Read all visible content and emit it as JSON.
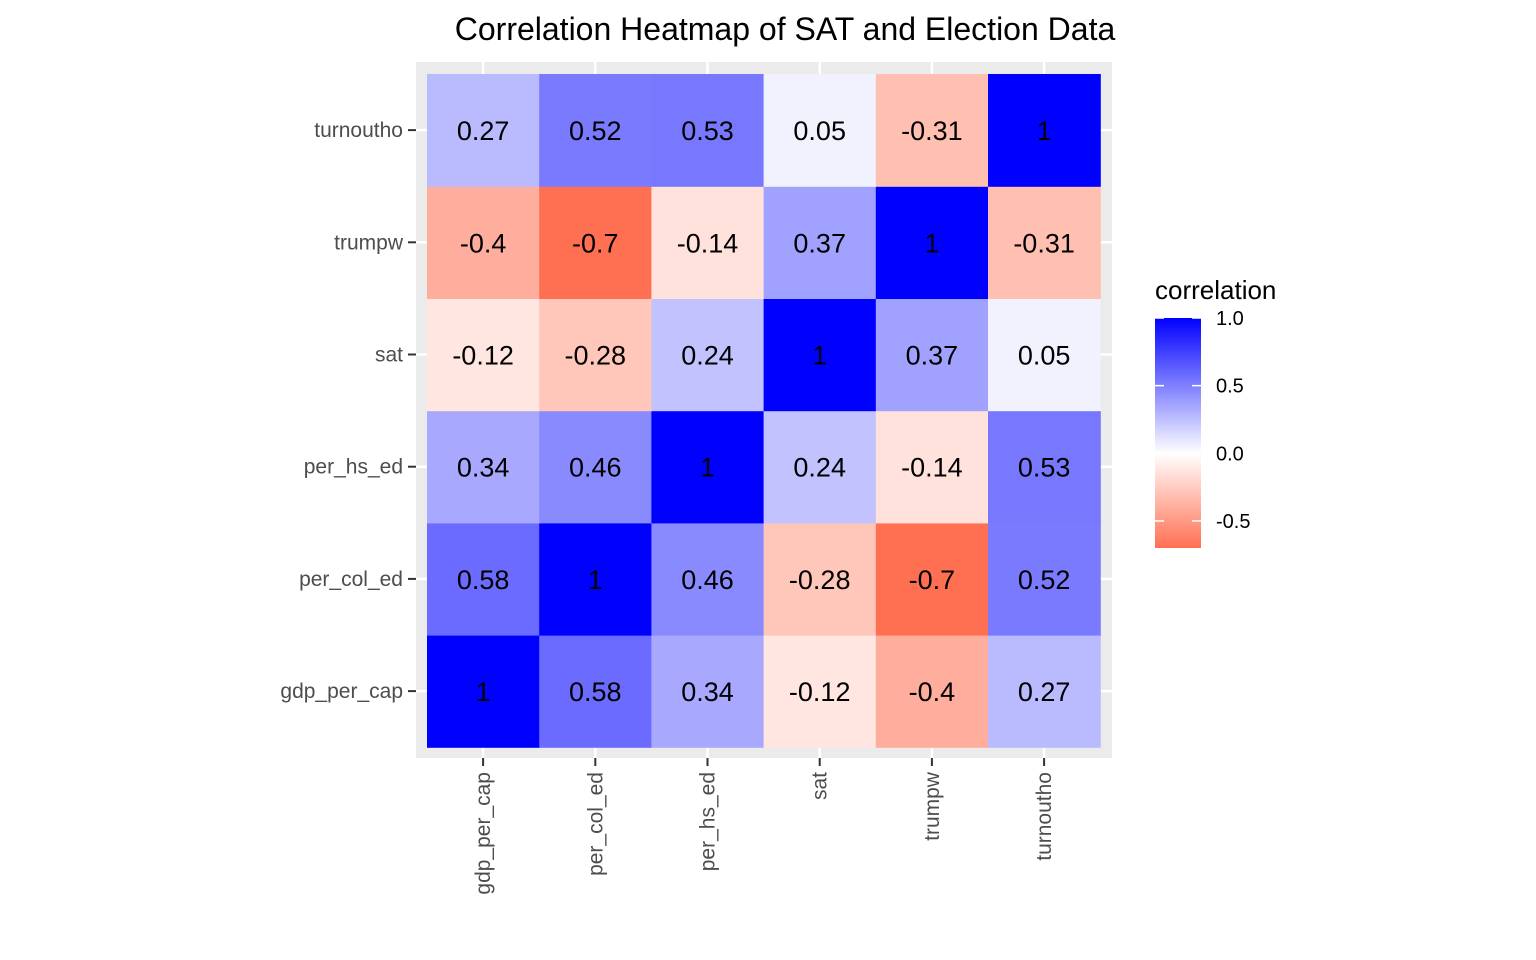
{
  "chart_data": {
    "type": "heatmap",
    "title": "Correlation Heatmap of SAT and Election Data",
    "xlabel": "",
    "ylabel": "",
    "x_categories": [
      "gdp_per_cap",
      "per_col_ed",
      "per_hs_ed",
      "sat",
      "trumpw",
      "turnoutho"
    ],
    "y_categories": [
      "gdp_per_cap",
      "per_col_ed",
      "per_hs_ed",
      "sat",
      "trumpw",
      "turnoutho"
    ],
    "matrix": [
      [
        1,
        0.58,
        0.34,
        -0.12,
        -0.4,
        0.27
      ],
      [
        0.58,
        1,
        0.46,
        -0.28,
        -0.7,
        0.52
      ],
      [
        0.34,
        0.46,
        1,
        0.24,
        -0.14,
        0.53
      ],
      [
        -0.12,
        -0.28,
        0.24,
        1,
        0.37,
        0.05
      ],
      [
        -0.4,
        -0.7,
        -0.14,
        0.37,
        1,
        -0.31
      ],
      [
        0.27,
        0.52,
        0.53,
        0.05,
        -0.31,
        1
      ]
    ],
    "legend": {
      "title": "correlation",
      "placement": "right",
      "ticks": [
        1.0,
        0.5,
        0.0,
        -0.5
      ],
      "tick_labels": [
        "1.0",
        "0.5",
        "0.0",
        "-0.5"
      ],
      "range": [
        -0.7,
        1
      ]
    },
    "colors": {
      "low": "#ff7052",
      "mid": "#ffffff",
      "high": "#0000ff",
      "panel_background": "#ebebeb",
      "grid": "#ffffff"
    },
    "grid": true
  }
}
